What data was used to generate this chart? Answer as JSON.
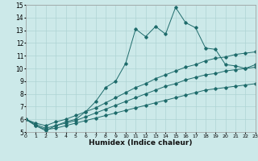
{
  "xlabel": "Humidex (Indice chaleur)",
  "xlim": [
    0,
    23
  ],
  "ylim": [
    5,
    15
  ],
  "xticks": [
    0,
    1,
    2,
    3,
    4,
    5,
    6,
    7,
    8,
    9,
    10,
    11,
    12,
    13,
    14,
    15,
    16,
    17,
    18,
    19,
    20,
    21,
    22,
    23
  ],
  "yticks": [
    5,
    6,
    7,
    8,
    9,
    10,
    11,
    12,
    13,
    14,
    15
  ],
  "bg_color": "#cce9e9",
  "line_color": "#1e6b6b",
  "grid_color": "#aed4d4",
  "line1_x": [
    0,
    1,
    2,
    3,
    4,
    5,
    6,
    7,
    8,
    9,
    10,
    11,
    12,
    13,
    14,
    15,
    16,
    17,
    18,
    19,
    20,
    21,
    22,
    23
  ],
  "line1_y": [
    6.0,
    5.5,
    5.1,
    5.5,
    5.8,
    6.0,
    6.6,
    7.4,
    8.5,
    9.0,
    10.4,
    13.1,
    12.5,
    13.3,
    12.7,
    14.8,
    13.6,
    13.2,
    11.6,
    11.5,
    10.3,
    10.2,
    10.0,
    10.3
  ],
  "line2_x": [
    0,
    1,
    2,
    3,
    4,
    5,
    6,
    7,
    8,
    9,
    10,
    11,
    12,
    13,
    14,
    15,
    16,
    17,
    18,
    19,
    20,
    21,
    22,
    23
  ],
  "line2_y": [
    6.0,
    5.7,
    5.5,
    5.8,
    6.0,
    6.3,
    6.6,
    6.9,
    7.3,
    7.7,
    8.1,
    8.5,
    8.8,
    9.2,
    9.5,
    9.8,
    10.1,
    10.3,
    10.6,
    10.8,
    10.9,
    11.1,
    11.2,
    11.3
  ],
  "line3_x": [
    0,
    1,
    2,
    3,
    4,
    5,
    6,
    7,
    8,
    9,
    10,
    11,
    12,
    13,
    14,
    15,
    16,
    17,
    18,
    19,
    20,
    21,
    22,
    23
  ],
  "line3_y": [
    6.0,
    5.6,
    5.3,
    5.5,
    5.7,
    5.9,
    6.2,
    6.5,
    6.8,
    7.1,
    7.4,
    7.7,
    8.0,
    8.3,
    8.6,
    8.8,
    9.1,
    9.3,
    9.5,
    9.6,
    9.8,
    9.9,
    10.0,
    10.1
  ],
  "line4_x": [
    0,
    1,
    2,
    3,
    4,
    5,
    6,
    7,
    8,
    9,
    10,
    11,
    12,
    13,
    14,
    15,
    16,
    17,
    18,
    19,
    20,
    21,
    22,
    23
  ],
  "line4_y": [
    6.0,
    5.5,
    5.2,
    5.3,
    5.5,
    5.7,
    5.9,
    6.1,
    6.3,
    6.5,
    6.7,
    6.9,
    7.1,
    7.3,
    7.5,
    7.7,
    7.9,
    8.1,
    8.3,
    8.4,
    8.5,
    8.6,
    8.7,
    8.8
  ]
}
